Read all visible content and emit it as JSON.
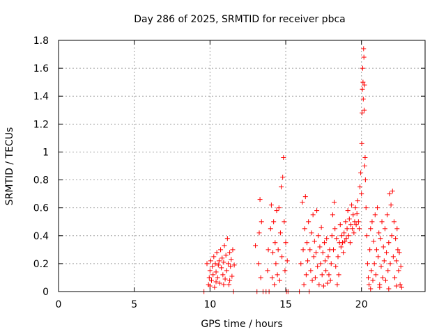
{
  "chart_data": {
    "type": "scatter",
    "title": "Day 286 of 2025, SRMTID for receiver pbca",
    "xlabel": "GPS time / hours",
    "ylabel": "SRMTID / TECUs",
    "xlim": [
      0,
      24.2
    ],
    "ylim": [
      0,
      1.8
    ],
    "xticks": [
      0,
      5,
      10,
      15,
      20
    ],
    "xtick_labels": [
      "0",
      "5",
      "10",
      "15",
      "20"
    ],
    "yticks": [
      0,
      0.2,
      0.4,
      0.6,
      0.8,
      1,
      1.2,
      1.4,
      1.6,
      1.8
    ],
    "ytick_labels": [
      "0",
      "0.2",
      "0.4",
      "0.6",
      "0.8",
      "1",
      "1.2",
      "1.4",
      "1.6",
      "1.8"
    ],
    "grid": true,
    "marker": "+",
    "color": "#ff0000",
    "series": [
      {
        "name": "SRMTID",
        "points": [
          [
            9.6,
            0.0
          ],
          [
            9.8,
            0.2
          ],
          [
            9.9,
            0.05
          ],
          [
            9.95,
            0.1
          ],
          [
            10.0,
            0.15
          ],
          [
            10.05,
            0.22
          ],
          [
            10.1,
            0.08
          ],
          [
            10.15,
            0.18
          ],
          [
            10.2,
            0.12
          ],
          [
            10.25,
            0.25
          ],
          [
            10.3,
            0.03
          ],
          [
            10.35,
            0.2
          ],
          [
            10.4,
            0.14
          ],
          [
            10.45,
            0.28
          ],
          [
            10.5,
            0.1
          ],
          [
            10.55,
            0.19
          ],
          [
            10.6,
            0.22
          ],
          [
            10.65,
            0.06
          ],
          [
            10.7,
            0.3
          ],
          [
            10.75,
            0.17
          ],
          [
            10.8,
            0.24
          ],
          [
            10.85,
            0.12
          ],
          [
            10.9,
            0.21
          ],
          [
            10.95,
            0.33
          ],
          [
            11.0,
            0.09
          ],
          [
            11.05,
            0.26
          ],
          [
            11.1,
            0.15
          ],
          [
            11.15,
            0.38
          ],
          [
            11.2,
            0.2
          ],
          [
            11.25,
            0.05
          ],
          [
            11.3,
            0.28
          ],
          [
            11.35,
            0.18
          ],
          [
            11.4,
            0.23
          ],
          [
            11.45,
            0.11
          ],
          [
            11.5,
            0.3
          ],
          [
            11.55,
            0.0
          ],
          [
            11.6,
            0.19
          ],
          [
            10.0,
            0.04
          ],
          [
            10.4,
            0.07
          ],
          [
            10.9,
            0.05
          ],
          [
            11.3,
            0.08
          ],
          [
            13.0,
            0.33
          ],
          [
            13.1,
            0.0
          ],
          [
            13.2,
            0.2
          ],
          [
            13.25,
            0.42
          ],
          [
            13.3,
            0.66
          ],
          [
            13.35,
            0.1
          ],
          [
            13.4,
            0.5
          ],
          [
            13.5,
            0.0
          ],
          [
            13.7,
            0.0
          ],
          [
            13.8,
            0.15
          ],
          [
            13.85,
            0.3
          ],
          [
            13.9,
            0.0
          ],
          [
            14.0,
            0.45
          ],
          [
            14.05,
            0.62
          ],
          [
            14.1,
            0.1
          ],
          [
            14.15,
            0.28
          ],
          [
            14.2,
            0.5
          ],
          [
            14.25,
            0.05
          ],
          [
            14.3,
            0.35
          ],
          [
            14.35,
            0.2
          ],
          [
            14.4,
            0.58
          ],
          [
            14.45,
            0.12
          ],
          [
            14.5,
            0.3
          ],
          [
            14.55,
            0.6
          ],
          [
            14.6,
            0.08
          ],
          [
            14.65,
            0.42
          ],
          [
            14.7,
            0.75
          ],
          [
            14.75,
            0.25
          ],
          [
            14.8,
            0.82
          ],
          [
            14.85,
            0.96
          ],
          [
            14.9,
            0.5
          ],
          [
            14.95,
            0.15
          ],
          [
            15.0,
            0.35
          ],
          [
            15.05,
            0.0
          ],
          [
            15.1,
            0.22
          ],
          [
            15.15,
            0.0
          ],
          [
            15.9,
            0.0
          ],
          [
            16.0,
            0.2
          ],
          [
            16.1,
            0.64
          ],
          [
            16.15,
            0.3
          ],
          [
            16.2,
            0.05
          ],
          [
            16.25,
            0.45
          ],
          [
            16.3,
            0.68
          ],
          [
            16.35,
            0.12
          ],
          [
            16.4,
            0.35
          ],
          [
            16.45,
            0.22
          ],
          [
            16.5,
            0.5
          ],
          [
            16.55,
            0.0
          ],
          [
            16.6,
            0.3
          ],
          [
            16.65,
            0.15
          ],
          [
            16.7,
            0.42
          ],
          [
            16.75,
            0.08
          ],
          [
            16.8,
            0.55
          ],
          [
            16.85,
            0.25
          ],
          [
            16.9,
            0.36
          ],
          [
            16.95,
            0.1
          ],
          [
            17.0,
            0.28
          ],
          [
            17.05,
            0.58
          ],
          [
            17.1,
            0.18
          ],
          [
            17.15,
            0.4
          ],
          [
            17.2,
            0.05
          ],
          [
            17.25,
            0.32
          ],
          [
            17.3,
            0.2
          ],
          [
            17.35,
            0.46
          ],
          [
            17.4,
            0.12
          ],
          [
            17.45,
            0.28
          ],
          [
            17.5,
            0.04
          ],
          [
            17.55,
            0.35
          ],
          [
            17.6,
            0.22
          ],
          [
            17.65,
            0.15
          ],
          [
            17.7,
            0.38
          ],
          [
            17.75,
            0.06
          ],
          [
            17.8,
            0.25
          ],
          [
            17.85,
            0.12
          ],
          [
            17.9,
            0.3
          ],
          [
            17.95,
            0.08
          ],
          [
            18.0,
            0.2
          ],
          [
            18.05,
            0.4
          ],
          [
            18.1,
            0.55
          ],
          [
            18.15,
            0.3
          ],
          [
            18.2,
            0.64
          ],
          [
            18.25,
            0.45
          ],
          [
            18.3,
            0.18
          ],
          [
            18.35,
            0.38
          ],
          [
            18.4,
            0.05
          ],
          [
            18.45,
            0.25
          ],
          [
            18.5,
            0.12
          ],
          [
            18.55,
            0.35
          ],
          [
            18.6,
            0.48
          ],
          [
            18.65,
            0.32
          ],
          [
            18.7,
            0.4
          ],
          [
            18.75,
            0.35
          ],
          [
            18.8,
            0.28
          ],
          [
            18.85,
            0.42
          ],
          [
            18.9,
            0.36
          ],
          [
            18.95,
            0.5
          ],
          [
            19.0,
            0.38
          ],
          [
            19.05,
            0.45
          ],
          [
            19.1,
            0.58
          ],
          [
            19.15,
            0.4
          ],
          [
            19.2,
            0.52
          ],
          [
            19.25,
            0.35
          ],
          [
            19.3,
            0.48
          ],
          [
            19.35,
            0.62
          ],
          [
            19.4,
            0.45
          ],
          [
            19.45,
            0.55
          ],
          [
            19.5,
            0.42
          ],
          [
            19.55,
            0.5
          ],
          [
            19.6,
            0.6
          ],
          [
            19.65,
            0.48
          ],
          [
            19.7,
            0.56
          ],
          [
            19.75,
            0.65
          ],
          [
            19.8,
            0.5
          ],
          [
            19.85,
            0.45
          ],
          [
            19.9,
            0.75
          ],
          [
            19.95,
            0.85
          ],
          [
            20.0,
            0.7
          ],
          [
            20.02,
            1.06
          ],
          [
            20.04,
            1.28
          ],
          [
            20.06,
            1.45
          ],
          [
            20.08,
            1.6
          ],
          [
            20.1,
            1.5
          ],
          [
            20.12,
            1.38
          ],
          [
            20.14,
            1.74
          ],
          [
            20.16,
            1.68
          ],
          [
            20.18,
            1.3
          ],
          [
            20.2,
            1.48
          ],
          [
            20.22,
            0.9
          ],
          [
            20.24,
            0.96
          ],
          [
            20.26,
            0.8
          ],
          [
            20.3,
            0.6
          ],
          [
            20.35,
            0.4
          ],
          [
            20.4,
            0.2
          ],
          [
            20.45,
            0.1
          ],
          [
            20.5,
            0.05
          ],
          [
            20.55,
            0.3
          ],
          [
            20.6,
            0.45
          ],
          [
            20.65,
            0.15
          ],
          [
            20.7,
            0.5
          ],
          [
            20.75,
            0.08
          ],
          [
            20.8,
            0.36
          ],
          [
            20.85,
            0.2
          ],
          [
            20.9,
            0.55
          ],
          [
            20.95,
            0.12
          ],
          [
            21.0,
            0.3
          ],
          [
            21.05,
            0.6
          ],
          [
            21.1,
            0.25
          ],
          [
            21.15,
            0.42
          ],
          [
            21.2,
            0.05
          ],
          [
            21.25,
            0.38
          ],
          [
            21.3,
            0.18
          ],
          [
            21.35,
            0.5
          ],
          [
            21.4,
            0.1
          ],
          [
            21.45,
            0.32
          ],
          [
            21.5,
            0.22
          ],
          [
            21.55,
            0.45
          ],
          [
            21.6,
            0.08
          ],
          [
            21.65,
            0.28
          ],
          [
            21.7,
            0.55
          ],
          [
            21.75,
            0.15
          ],
          [
            21.8,
            0.35
          ],
          [
            21.85,
            0.7
          ],
          [
            21.9,
            0.2
          ],
          [
            21.95,
            0.62
          ],
          [
            22.0,
            0.4
          ],
          [
            22.05,
            0.72
          ],
          [
            22.1,
            0.25
          ],
          [
            22.15,
            0.5
          ],
          [
            22.2,
            0.1
          ],
          [
            22.25,
            0.38
          ],
          [
            22.3,
            0.22
          ],
          [
            22.35,
            0.45
          ],
          [
            22.4,
            0.3
          ],
          [
            22.45,
            0.15
          ],
          [
            22.5,
            0.28
          ],
          [
            22.55,
            0.05
          ],
          [
            22.6,
            0.18
          ],
          [
            22.65,
            0.03
          ],
          [
            20.6,
            0.02
          ],
          [
            21.2,
            0.03
          ],
          [
            21.8,
            0.02
          ],
          [
            22.3,
            0.04
          ]
        ]
      }
    ]
  }
}
